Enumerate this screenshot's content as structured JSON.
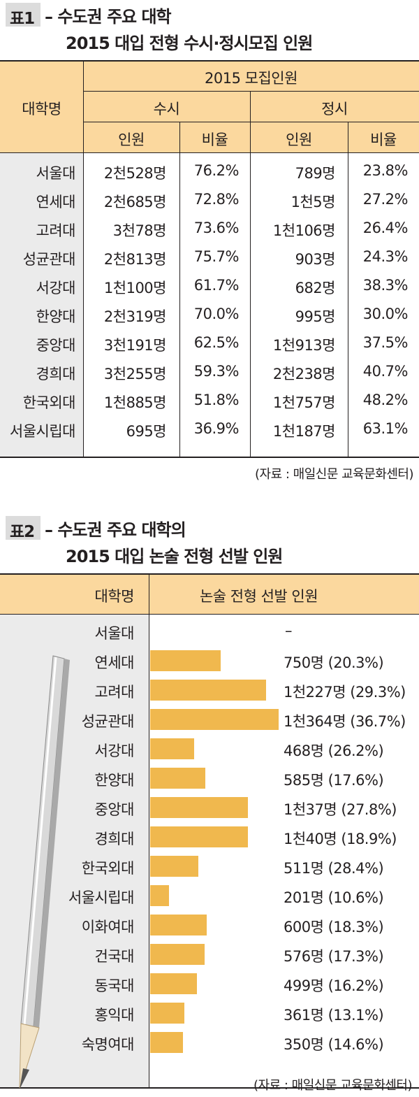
{
  "table1": {
    "tag": "표1",
    "title_line1": "– 수도권 주요 대학",
    "title_line2": "2015 대입 전형 수시·정시모집 인원",
    "header": {
      "university": "대학명",
      "group": "2015 모집인원",
      "susi": "수시",
      "jeongsi": "정시",
      "count": "인원",
      "ratio": "비율"
    },
    "rows": [
      {
        "name": "서울대",
        "susi_count": "2천528명",
        "susi_ratio": "76.2%",
        "jeongsi_count": "789명",
        "jeongsi_ratio": "23.8%"
      },
      {
        "name": "연세대",
        "susi_count": "2천685명",
        "susi_ratio": "72.8%",
        "jeongsi_count": "1천5명",
        "jeongsi_ratio": "27.2%"
      },
      {
        "name": "고려대",
        "susi_count": "3천78명",
        "susi_ratio": "73.6%",
        "jeongsi_count": "1천106명",
        "jeongsi_ratio": "26.4%"
      },
      {
        "name": "성균관대",
        "susi_count": "2천813명",
        "susi_ratio": "75.7%",
        "jeongsi_count": "903명",
        "jeongsi_ratio": "24.3%"
      },
      {
        "name": "서강대",
        "susi_count": "1천100명",
        "susi_ratio": "61.7%",
        "jeongsi_count": "682명",
        "jeongsi_ratio": "38.3%"
      },
      {
        "name": "한양대",
        "susi_count": "2천319명",
        "susi_ratio": "70.0%",
        "jeongsi_count": "995명",
        "jeongsi_ratio": "30.0%"
      },
      {
        "name": "중앙대",
        "susi_count": "3천191명",
        "susi_ratio": "62.5%",
        "jeongsi_count": "1천913명",
        "jeongsi_ratio": "37.5%"
      },
      {
        "name": "경희대",
        "susi_count": "3천255명",
        "susi_ratio": "59.3%",
        "jeongsi_count": "2천238명",
        "jeongsi_ratio": "40.7%"
      },
      {
        "name": "한국외대",
        "susi_count": "1천885명",
        "susi_ratio": "51.8%",
        "jeongsi_count": "1천757명",
        "jeongsi_ratio": "48.2%"
      },
      {
        "name": "서울시립대",
        "susi_count": "695명",
        "susi_ratio": "36.9%",
        "jeongsi_count": "1천187명",
        "jeongsi_ratio": "63.1%"
      }
    ],
    "source": "(자료 : 매일신문 교육문화센터)"
  },
  "table2": {
    "tag": "표2",
    "title_line1": "– 수도권 주요 대학의",
    "title_line2": "2015 대입 논술 전형 선발 인원",
    "header": {
      "university": "대학명",
      "value": "논술 전형 선발 인원"
    },
    "source": "(자료 : 매일신문 교육문화센터)"
  },
  "chart_data": {
    "type": "bar",
    "orientation": "horizontal",
    "categories": [
      "서울대",
      "연세대",
      "고려대",
      "성균관대",
      "서강대",
      "한양대",
      "중앙대",
      "경희대",
      "한국외대",
      "서울시립대",
      "이화여대",
      "건국대",
      "동국대",
      "홍익대",
      "숙명여대"
    ],
    "values": [
      null,
      750,
      1227,
      1364,
      468,
      585,
      1037,
      1040,
      511,
      201,
      600,
      576,
      499,
      361,
      350
    ],
    "labels": [
      "–",
      "750명 (20.3%)",
      "1천227명 (29.3%)",
      "1천364명 (36.7%)",
      "468명 (26.2%)",
      "585명 (17.6%)",
      "1천37명 (27.8%)",
      "1천40명 (18.9%)",
      "511명 (28.4%)",
      "201명 (10.6%)",
      "600명 (18.3%)",
      "576명 (17.3%)",
      "499명 (16.2%)",
      "361명 (13.1%)",
      "350명 (14.6%)"
    ],
    "bar_color": "#f0b84e",
    "grid": false,
    "legend": "none"
  },
  "colors": {
    "header_bg": "#fbd89e",
    "label_bg": "#ebebeb",
    "tag_bg": "#dcdcdc",
    "line": "#231f20"
  }
}
